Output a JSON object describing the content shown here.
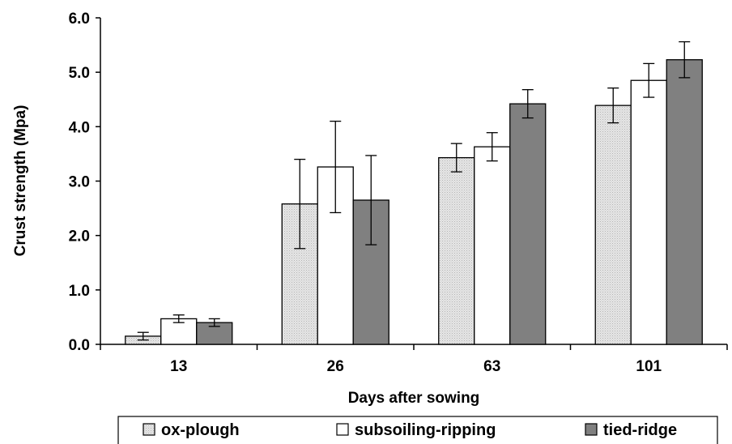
{
  "chart_data": {
    "type": "bar",
    "categories": [
      "13",
      "26",
      "63",
      "101"
    ],
    "series": [
      {
        "name": "ox-plough",
        "values": [
          0.15,
          2.58,
          3.43,
          4.39
        ],
        "errors": [
          0.07,
          0.82,
          0.26,
          0.32
        ],
        "color": "#d9d9d9",
        "pattern": "dotted"
      },
      {
        "name": "subsoiling-ripping",
        "values": [
          0.47,
          3.26,
          3.63,
          4.85
        ],
        "errors": [
          0.07,
          0.84,
          0.26,
          0.31
        ],
        "color": "#ffffff",
        "pattern": "none"
      },
      {
        "name": "tied-ridge",
        "values": [
          0.4,
          2.65,
          4.42,
          5.23
        ],
        "errors": [
          0.07,
          0.82,
          0.26,
          0.33
        ],
        "color": "#808080",
        "pattern": "none"
      }
    ],
    "xlabel": "Days after sowing",
    "ylabel": "Crust strength (Mpa)",
    "ylim": [
      0,
      6
    ],
    "yticks": [
      "0.0",
      "1.0",
      "2.0",
      "3.0",
      "4.0",
      "5.0",
      "6.0"
    ],
    "grid": false,
    "legend_position": "bottom"
  }
}
